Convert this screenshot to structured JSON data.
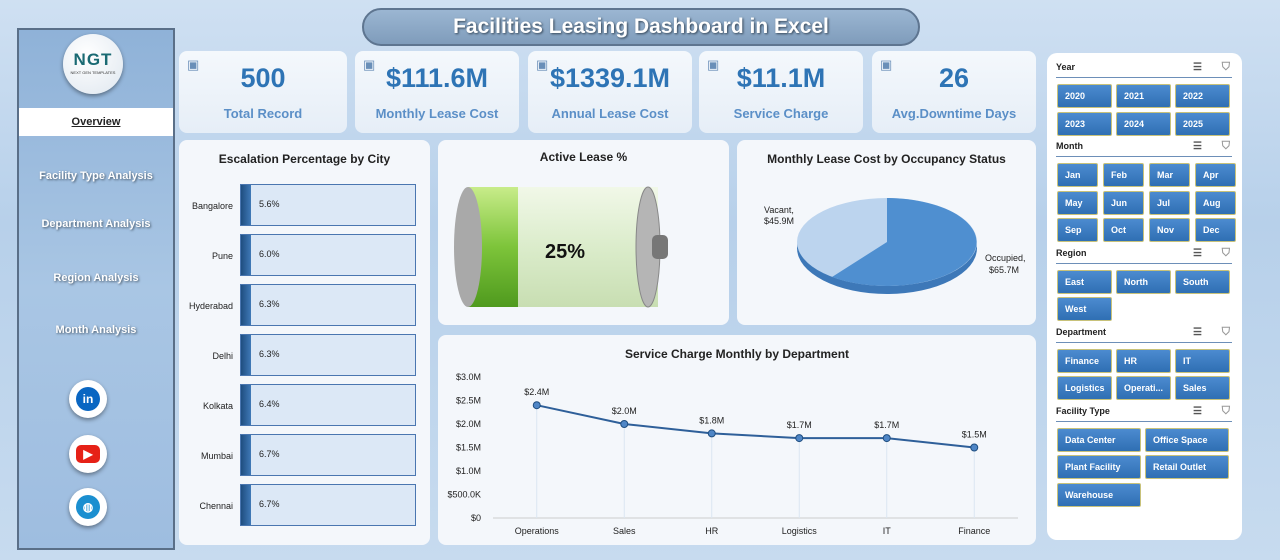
{
  "title": "Facilities Leasing Dashboard in Excel",
  "logo": {
    "text": "NGT",
    "tagline": "NEXT GEN TEMPLATES"
  },
  "nav": [
    "Overview",
    "Facility Type Analysis",
    "Department Analysis",
    "Region Analysis",
    "Month Analysis"
  ],
  "social": [
    "linkedin-icon",
    "youtube-icon",
    "globe-icon"
  ],
  "kpis": [
    {
      "value": "500",
      "label": "Total Record",
      "icon": "clipboard-icon"
    },
    {
      "value": "$111.6M",
      "label": "Monthly Lease Cost",
      "icon": "money-bag-icon"
    },
    {
      "value": "$1339.1M",
      "label": "Annual Lease Cost",
      "icon": "money-bag-icon"
    },
    {
      "value": "$11.1M",
      "label": "Service Charge",
      "icon": "handshake-icon"
    },
    {
      "value": "26",
      "label": "Avg.Downtime Days",
      "icon": "gear-icon"
    }
  ],
  "escalation": {
    "title": "Escalation Percentage by City",
    "cities": [
      "Bangalore",
      "Pune",
      "Hyderabad",
      "Delhi",
      "Kolkata",
      "Mumbai",
      "Chennai"
    ],
    "values": [
      "5.6%",
      "6.0%",
      "6.3%",
      "6.3%",
      "6.4%",
      "6.7%",
      "6.7%"
    ]
  },
  "active_lease": {
    "title": "Active Lease %",
    "value": "25%",
    "fraction": 0.25
  },
  "pie": {
    "title": "Monthly Lease Cost by Occupancy Status",
    "slices": [
      {
        "label": "Vacant,",
        "value": "$45.9M",
        "color": "#bcd4ee"
      },
      {
        "label": "Occupied,",
        "value": "$65.7M",
        "color": "#4f8fd0"
      }
    ]
  },
  "chart_data": {
    "type": "line",
    "title": "Service Charge Monthly by Department",
    "categories": [
      "Operations",
      "Sales",
      "HR",
      "Logistics",
      "IT",
      "Finance"
    ],
    "values": [
      2.4,
      2.0,
      1.8,
      1.7,
      1.7,
      1.5
    ],
    "labels": [
      "$2.4M",
      "$2.0M",
      "$1.8M",
      "$1.7M",
      "$1.7M",
      "$1.5M"
    ],
    "yticks": [
      "$0",
      "$500.0K",
      "$1.0M",
      "$1.5M",
      "$2.0M",
      "$2.5M",
      "$3.0M"
    ],
    "ylim": [
      0,
      3.0
    ],
    "color": "#2e5f99"
  },
  "slicers": [
    {
      "title": "Year",
      "items": [
        "2020",
        "2021",
        "2022",
        "2023",
        "2024",
        "2025"
      ],
      "cols": 3
    },
    {
      "title": "Month",
      "items": [
        "Jan",
        "Feb",
        "Mar",
        "Apr",
        "May",
        "Jun",
        "Jul",
        "Aug",
        "Sep",
        "Oct",
        "Nov",
        "Dec"
      ],
      "cols": 4
    },
    {
      "title": "Region",
      "items": [
        "East",
        "North",
        "South",
        "West"
      ],
      "cols": 3
    },
    {
      "title": "Department",
      "items": [
        "Finance",
        "HR",
        "IT",
        "Logistics",
        "Operati...",
        "Sales"
      ],
      "cols": 3
    },
    {
      "title": "Facility Type",
      "items": [
        "Data Center",
        "Office Space",
        "Plant Facility",
        "Retail Outlet",
        "Warehouse"
      ],
      "cols": 2
    }
  ]
}
